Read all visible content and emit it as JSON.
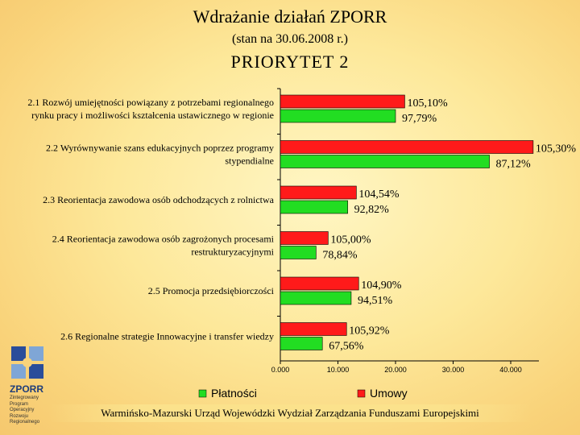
{
  "header": {
    "title": "Wdrażanie działań ZPORR",
    "subtitle": "(stan na 30.06.2008 r.)",
    "priority": "PRIORYTET 2"
  },
  "logo": {
    "name": "ZPORR",
    "sub": [
      "Zintegrowany",
      "Program",
      "Operacyjny",
      "Rozwoju",
      "Regionalnego"
    ]
  },
  "footer": "Warmińsko-Mazurski Urząd Wojewódzki Wydział Zarządzania Funduszami Europejskimi",
  "colors": {
    "umowy": "#ff1a1a",
    "platnosci": "#22dd22"
  },
  "chart_data": {
    "type": "bar",
    "orientation": "horizontal",
    "categories": [
      [
        "2.1 Rozwój umiejętności powiązany z potrzebami regionalnego",
        "rynku pracy i możliwości kształcenia ustawicznego w regionie"
      ],
      [
        "2.2 Wyrównywanie szans edukacyjnych poprzez programy",
        "stypendialne"
      ],
      [
        "2.3 Reorientacja zawodowa osób odchodzących z rolnictwa"
      ],
      [
        "2.4 Reorientacja zawodowa osób zagrożonych procesami",
        "restrukturyzacyjnymi"
      ],
      [
        "2.5 Promocja przedsiębiorczości"
      ],
      [
        "2.6 Regionalne strategie Innowacyjne i transfer wiedzy"
      ]
    ],
    "series": [
      {
        "name": "Umowy",
        "values": [
          21600,
          43900,
          13200,
          8300,
          13600,
          11500
        ],
        "labels": [
          "105,10%",
          "105,30%",
          "104,54%",
          "105,00%",
          "104,90%",
          "105,92%"
        ]
      },
      {
        "name": "Płatności",
        "values": [
          20000,
          36300,
          11700,
          6200,
          12300,
          7300
        ],
        "labels": [
          "97,79%",
          "87,12%",
          "92,82%",
          "78,84%",
          "94,51%",
          "67,56%"
        ]
      }
    ],
    "xticks": [
      "0.000",
      "10.000",
      "20.000",
      "30.000",
      "40.000"
    ],
    "xlim": [
      0,
      45000
    ],
    "legend": "bottom"
  }
}
